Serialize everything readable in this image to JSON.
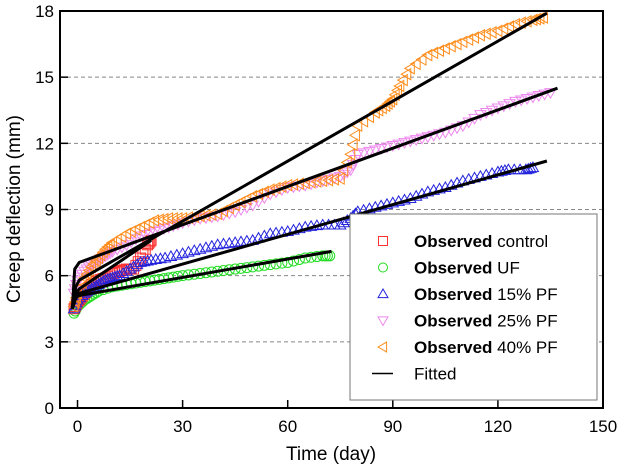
{
  "chart_data": {
    "type": "scatter",
    "title": "",
    "xlabel": "Time (day)",
    "ylabel": "Creep deflection (mm)",
    "xlim": [
      -5,
      150
    ],
    "ylim": [
      0,
      18
    ],
    "xticks": [
      0,
      30,
      60,
      90,
      120,
      150
    ],
    "yticks": [
      0,
      3,
      6,
      9,
      12,
      15,
      18
    ],
    "xtick_labels": [
      "0",
      "30",
      "60",
      "90",
      "120",
      "150"
    ],
    "ytick_labels": [
      "0",
      "3",
      "6",
      "9",
      "12",
      "15",
      "18"
    ],
    "grid": "horizontal dashed",
    "legend_position": "bottom-right",
    "legend": [
      {
        "bold": "Observed",
        "text": " control",
        "marker": "square",
        "color": "#ff3333"
      },
      {
        "bold": "Observed",
        "text": " UF",
        "marker": "circle",
        "color": "#22dd22"
      },
      {
        "bold": "Observed",
        "text": " 15% PF",
        "marker": "triangle-up",
        "color": "#2222dd"
      },
      {
        "bold": "Observed",
        "text": " 25% PF",
        "marker": "triangle-down",
        "color": "#ee88ee"
      },
      {
        "bold": "Observed",
        "text": " 40% PF",
        "marker": "triangle-left",
        "color": "#ff8c1a"
      },
      {
        "bold": "",
        "text": "Fitted",
        "marker": "line",
        "color": "#000000"
      }
    ],
    "series": [
      {
        "name": "Observed control",
        "marker": "square",
        "color": "#ff3333",
        "x": [
          -1,
          0,
          1,
          2,
          3,
          4,
          6,
          8,
          10,
          12,
          14,
          16,
          18,
          20,
          21
        ],
        "y": [
          4.5,
          4.8,
          5.0,
          5.2,
          5.4,
          5.6,
          5.8,
          5.9,
          6.1,
          6.2,
          6.3,
          6.3,
          6.8,
          7.4,
          7.6
        ]
      },
      {
        "name": "Observed UF",
        "marker": "circle",
        "color": "#22dd22",
        "x": [
          -1,
          0,
          2,
          4,
          6,
          10,
          14,
          18,
          22,
          26,
          30,
          35,
          40,
          45,
          50,
          55,
          60,
          65,
          70,
          72
        ],
        "y": [
          4.3,
          4.6,
          4.9,
          5.1,
          5.3,
          5.5,
          5.6,
          5.7,
          5.8,
          5.9,
          6.0,
          6.1,
          6.2,
          6.3,
          6.4,
          6.5,
          6.6,
          6.8,
          6.9,
          6.9
        ]
      },
      {
        "name": "Observed 15% PF",
        "marker": "triangle-up",
        "color": "#2222dd",
        "x": [
          -1,
          0,
          2,
          4,
          6,
          8,
          10,
          12,
          15,
          18,
          21,
          25,
          30,
          35,
          40,
          45,
          50,
          55,
          60,
          65,
          70,
          75,
          78,
          80,
          85,
          90,
          95,
          100,
          105,
          110,
          115,
          120,
          123,
          128,
          130
        ],
        "y": [
          4.5,
          4.9,
          5.2,
          5.4,
          5.6,
          5.8,
          5.9,
          6.0,
          6.3,
          6.6,
          6.7,
          6.8,
          7.0,
          7.2,
          7.4,
          7.5,
          7.6,
          7.9,
          8.0,
          8.2,
          8.3,
          8.3,
          8.6,
          8.9,
          9.1,
          9.3,
          9.5,
          9.8,
          10.0,
          10.3,
          10.5,
          10.7,
          10.8,
          10.8,
          10.9
        ]
      },
      {
        "name": "Observed 25% PF",
        "marker": "triangle-down",
        "color": "#ee88ee",
        "x": [
          -1,
          0,
          2,
          4,
          6,
          8,
          10,
          14,
          18,
          22,
          26,
          30,
          35,
          40,
          45,
          50,
          55,
          60,
          65,
          70,
          75,
          78,
          80,
          85,
          90,
          95,
          100,
          105,
          110,
          115,
          120,
          125,
          130,
          135
        ],
        "y": [
          5.2,
          5.8,
          6.2,
          6.5,
          6.7,
          6.9,
          7.1,
          7.4,
          7.8,
          8.0,
          8.2,
          8.4,
          8.6,
          8.7,
          8.9,
          9.2,
          9.7,
          10.0,
          10.1,
          10.3,
          10.5,
          10.8,
          11.5,
          11.7,
          11.9,
          12.1,
          12.3,
          12.5,
          12.8,
          13.3,
          13.6,
          13.9,
          14.1,
          14.3
        ]
      },
      {
        "name": "Observed 40% PF",
        "marker": "triangle-left",
        "color": "#ff8c1a",
        "x": [
          -1,
          0,
          2,
          4,
          6,
          8,
          10,
          14,
          18,
          22,
          26,
          30,
          35,
          40,
          45,
          50,
          55,
          60,
          65,
          70,
          75,
          78,
          80,
          85,
          88,
          90,
          92,
          95,
          100,
          105,
          110,
          115,
          120,
          125,
          130,
          133
        ],
        "y": [
          4.6,
          5.2,
          5.9,
          6.4,
          6.8,
          7.2,
          7.5,
          7.9,
          8.2,
          8.5,
          8.6,
          8.6,
          8.7,
          8.8,
          9.2,
          9.6,
          9.9,
          10.1,
          10.2,
          10.3,
          10.4,
          11.5,
          12.8,
          13.4,
          13.7,
          14.0,
          14.6,
          15.4,
          16.0,
          16.3,
          16.6,
          16.9,
          17.1,
          17.4,
          17.6,
          17.7
        ]
      }
    ],
    "fitted": [
      {
        "name": "Fitted control",
        "color": "#000000",
        "x": [
          -1.5,
          -0.5,
          0.5,
          21
        ],
        "y": [
          4.5,
          5.2,
          5.4,
          7.6
        ]
      },
      {
        "name": "Fitted UF",
        "color": "#000000",
        "x": [
          -1.5,
          -0.5,
          0.5,
          72.5
        ],
        "y": [
          4.5,
          5.0,
          5.1,
          7.1
        ]
      },
      {
        "name": "Fitted 15% PF",
        "color": "#000000",
        "x": [
          -1.5,
          -0.5,
          0.5,
          134
        ],
        "y": [
          4.5,
          5.0,
          5.2,
          11.2
        ]
      },
      {
        "name": "Fitted 25% PF",
        "color": "#000000",
        "x": [
          -1.5,
          -0.8,
          0.5,
          137
        ],
        "y": [
          4.5,
          6.3,
          6.6,
          14.5
        ]
      },
      {
        "name": "Fitted 40% PF",
        "color": "#000000",
        "x": [
          -1.5,
          -0.5,
          0.5,
          134
        ],
        "y": [
          4.5,
          5.5,
          5.8,
          17.9
        ]
      }
    ]
  }
}
